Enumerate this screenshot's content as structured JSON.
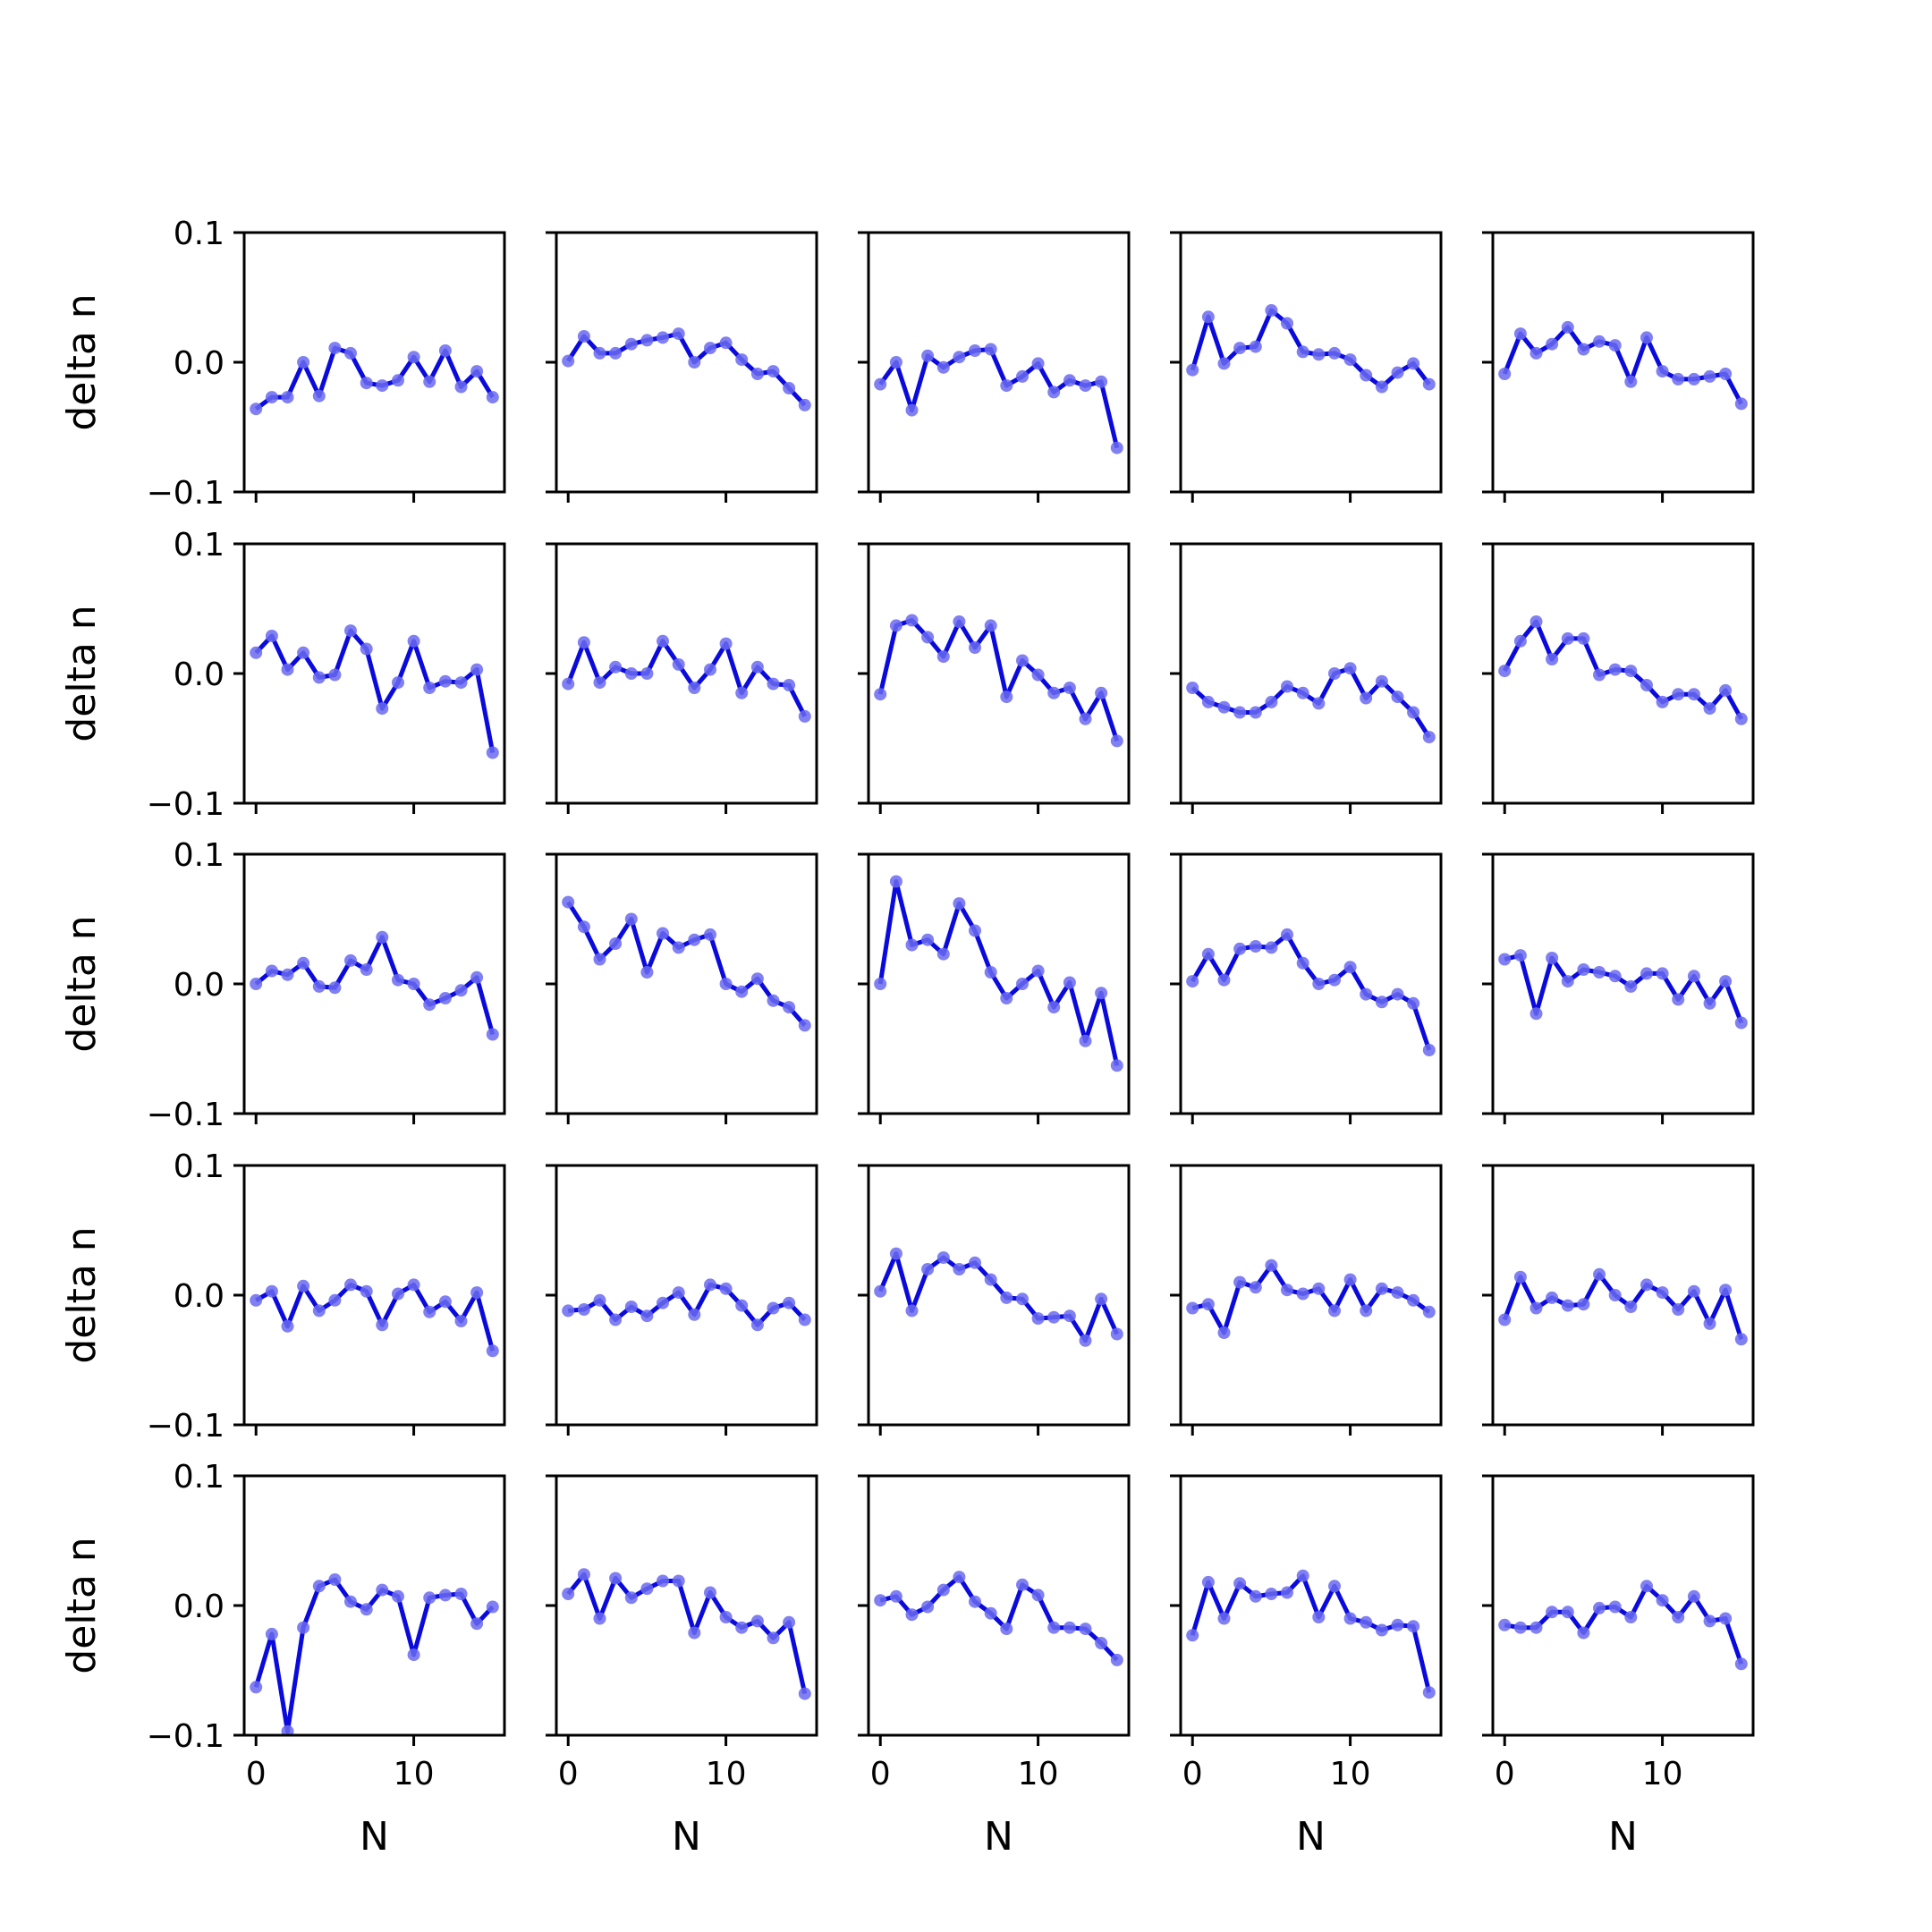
{
  "chart_data": {
    "type": "line",
    "layout": "grid",
    "rows": 5,
    "cols": 5,
    "xlabel": "N",
    "ylabel": "delta n",
    "xlim": [
      -0.75,
      15.75
    ],
    "ylim": [
      -0.1,
      0.1
    ],
    "xticks": [
      0,
      10
    ],
    "xtick_labels": [
      "0",
      "10"
    ],
    "yticks": [
      -0.1,
      0.0,
      0.1
    ],
    "ytick_labels": [
      "−0.1",
      "0.0",
      "0.1"
    ],
    "x": [
      0,
      1,
      2,
      3,
      4,
      5,
      6,
      7,
      8,
      9,
      10,
      11,
      12,
      13,
      14,
      15
    ],
    "line_color": "#0a0adc",
    "marker_color": "#6a6af0",
    "panels": [
      [
        -0.036,
        -0.027,
        -0.027,
        0.0,
        -0.026,
        0.011,
        0.007,
        -0.016,
        -0.018,
        -0.014,
        0.004,
        -0.015,
        0.009,
        -0.019,
        -0.007,
        -0.027
      ],
      [
        0.001,
        0.02,
        0.007,
        0.007,
        0.014,
        0.017,
        0.019,
        0.022,
        0.0,
        0.011,
        0.015,
        0.002,
        -0.009,
        -0.007,
        -0.02,
        -0.033
      ],
      [
        -0.017,
        0.0,
        -0.037,
        0.005,
        -0.004,
        0.004,
        0.009,
        0.01,
        -0.018,
        -0.011,
        -0.001,
        -0.023,
        -0.014,
        -0.018,
        -0.015,
        -0.066
      ],
      [
        -0.006,
        0.035,
        -0.001,
        0.011,
        0.012,
        0.04,
        0.03,
        0.008,
        0.006,
        0.007,
        0.002,
        -0.01,
        -0.019,
        -0.008,
        -0.001,
        -0.017
      ],
      [
        -0.009,
        0.022,
        0.007,
        0.014,
        0.027,
        0.01,
        0.016,
        0.013,
        -0.015,
        0.019,
        -0.007,
        -0.013,
        -0.013,
        -0.011,
        -0.009,
        -0.032
      ],
      [
        0.016,
        0.029,
        0.003,
        0.016,
        -0.003,
        -0.001,
        0.033,
        0.019,
        -0.027,
        -0.007,
        0.025,
        -0.011,
        -0.006,
        -0.007,
        0.003,
        -0.061
      ],
      [
        -0.008,
        0.024,
        -0.007,
        0.005,
        0.0,
        0.0,
        0.025,
        0.007,
        -0.011,
        0.003,
        0.023,
        -0.015,
        0.005,
        -0.008,
        -0.009,
        -0.033
      ],
      [
        -0.016,
        0.037,
        0.041,
        0.028,
        0.013,
        0.04,
        0.02,
        0.037,
        -0.018,
        0.01,
        -0.001,
        -0.015,
        -0.011,
        -0.035,
        -0.015,
        -0.052
      ],
      [
        -0.011,
        -0.022,
        -0.026,
        -0.03,
        -0.03,
        -0.022,
        -0.01,
        -0.015,
        -0.023,
        0.0,
        0.004,
        -0.019,
        -0.006,
        -0.018,
        -0.03,
        -0.049
      ],
      [
        0.002,
        0.025,
        0.04,
        0.011,
        0.027,
        0.027,
        -0.001,
        0.003,
        0.002,
        -0.009,
        -0.022,
        -0.016,
        -0.016,
        -0.027,
        -0.013,
        -0.035
      ],
      [
        0.0,
        0.01,
        0.007,
        0.016,
        -0.002,
        -0.003,
        0.018,
        0.011,
        0.036,
        0.003,
        0.0,
        -0.016,
        -0.011,
        -0.005,
        0.005,
        -0.039
      ],
      [
        0.063,
        0.044,
        0.019,
        0.031,
        0.05,
        0.009,
        0.039,
        0.028,
        0.034,
        0.038,
        0.0,
        -0.006,
        0.004,
        -0.013,
        -0.018,
        -0.032
      ],
      [
        0.0,
        0.079,
        0.03,
        0.034,
        0.023,
        0.062,
        0.041,
        0.009,
        -0.011,
        0.0,
        0.01,
        -0.018,
        0.001,
        -0.044,
        -0.007,
        -0.063
      ],
      [
        0.002,
        0.023,
        0.003,
        0.027,
        0.029,
        0.028,
        0.038,
        0.016,
        0.0,
        0.003,
        0.013,
        -0.008,
        -0.014,
        -0.008,
        -0.015,
        -0.051
      ],
      [
        0.019,
        0.022,
        -0.023,
        0.02,
        0.002,
        0.011,
        0.009,
        0.006,
        -0.002,
        0.008,
        0.008,
        -0.012,
        0.006,
        -0.015,
        0.002,
        -0.03
      ],
      [
        -0.004,
        0.003,
        -0.024,
        0.007,
        -0.012,
        -0.004,
        0.008,
        0.003,
        -0.023,
        0.001,
        0.008,
        -0.013,
        -0.005,
        -0.02,
        0.002,
        -0.043
      ],
      [
        -0.012,
        -0.011,
        -0.004,
        -0.019,
        -0.009,
        -0.016,
        -0.006,
        0.002,
        -0.015,
        0.008,
        0.005,
        -0.008,
        -0.023,
        -0.01,
        -0.006,
        -0.019
      ],
      [
        0.003,
        0.032,
        -0.012,
        0.02,
        0.029,
        0.02,
        0.025,
        0.012,
        -0.002,
        -0.003,
        -0.018,
        -0.017,
        -0.016,
        -0.035,
        -0.003,
        -0.03
      ],
      [
        -0.01,
        -0.007,
        -0.029,
        0.01,
        0.006,
        0.023,
        0.004,
        0.001,
        0.005,
        -0.012,
        0.012,
        -0.012,
        0.005,
        0.002,
        -0.004,
        -0.013
      ],
      [
        -0.019,
        0.014,
        -0.01,
        -0.002,
        -0.008,
        -0.007,
        0.016,
        0.0,
        -0.009,
        0.008,
        0.002,
        -0.011,
        0.003,
        -0.022,
        0.004,
        -0.034
      ],
      [
        -0.063,
        -0.022,
        -0.097,
        -0.017,
        0.015,
        0.02,
        0.003,
        -0.003,
        0.012,
        0.007,
        -0.038,
        0.006,
        0.008,
        0.009,
        -0.014,
        -0.001
      ],
      [
        0.009,
        0.024,
        -0.01,
        0.021,
        0.006,
        0.013,
        0.019,
        0.019,
        -0.021,
        0.01,
        -0.009,
        -0.017,
        -0.012,
        -0.025,
        -0.013,
        -0.068
      ],
      [
        0.004,
        0.007,
        -0.007,
        -0.001,
        0.012,
        0.022,
        0.003,
        -0.006,
        -0.018,
        0.016,
        0.008,
        -0.017,
        -0.017,
        -0.018,
        -0.029,
        -0.042
      ],
      [
        -0.023,
        0.018,
        -0.01,
        0.017,
        0.007,
        0.009,
        0.01,
        0.023,
        -0.009,
        0.015,
        -0.01,
        -0.013,
        -0.019,
        -0.015,
        -0.016,
        -0.067
      ],
      [
        -0.015,
        -0.017,
        -0.017,
        -0.005,
        -0.005,
        -0.021,
        -0.002,
        -0.001,
        -0.009,
        0.015,
        0.004,
        -0.009,
        0.007,
        -0.012,
        -0.01,
        -0.045
      ]
    ]
  }
}
